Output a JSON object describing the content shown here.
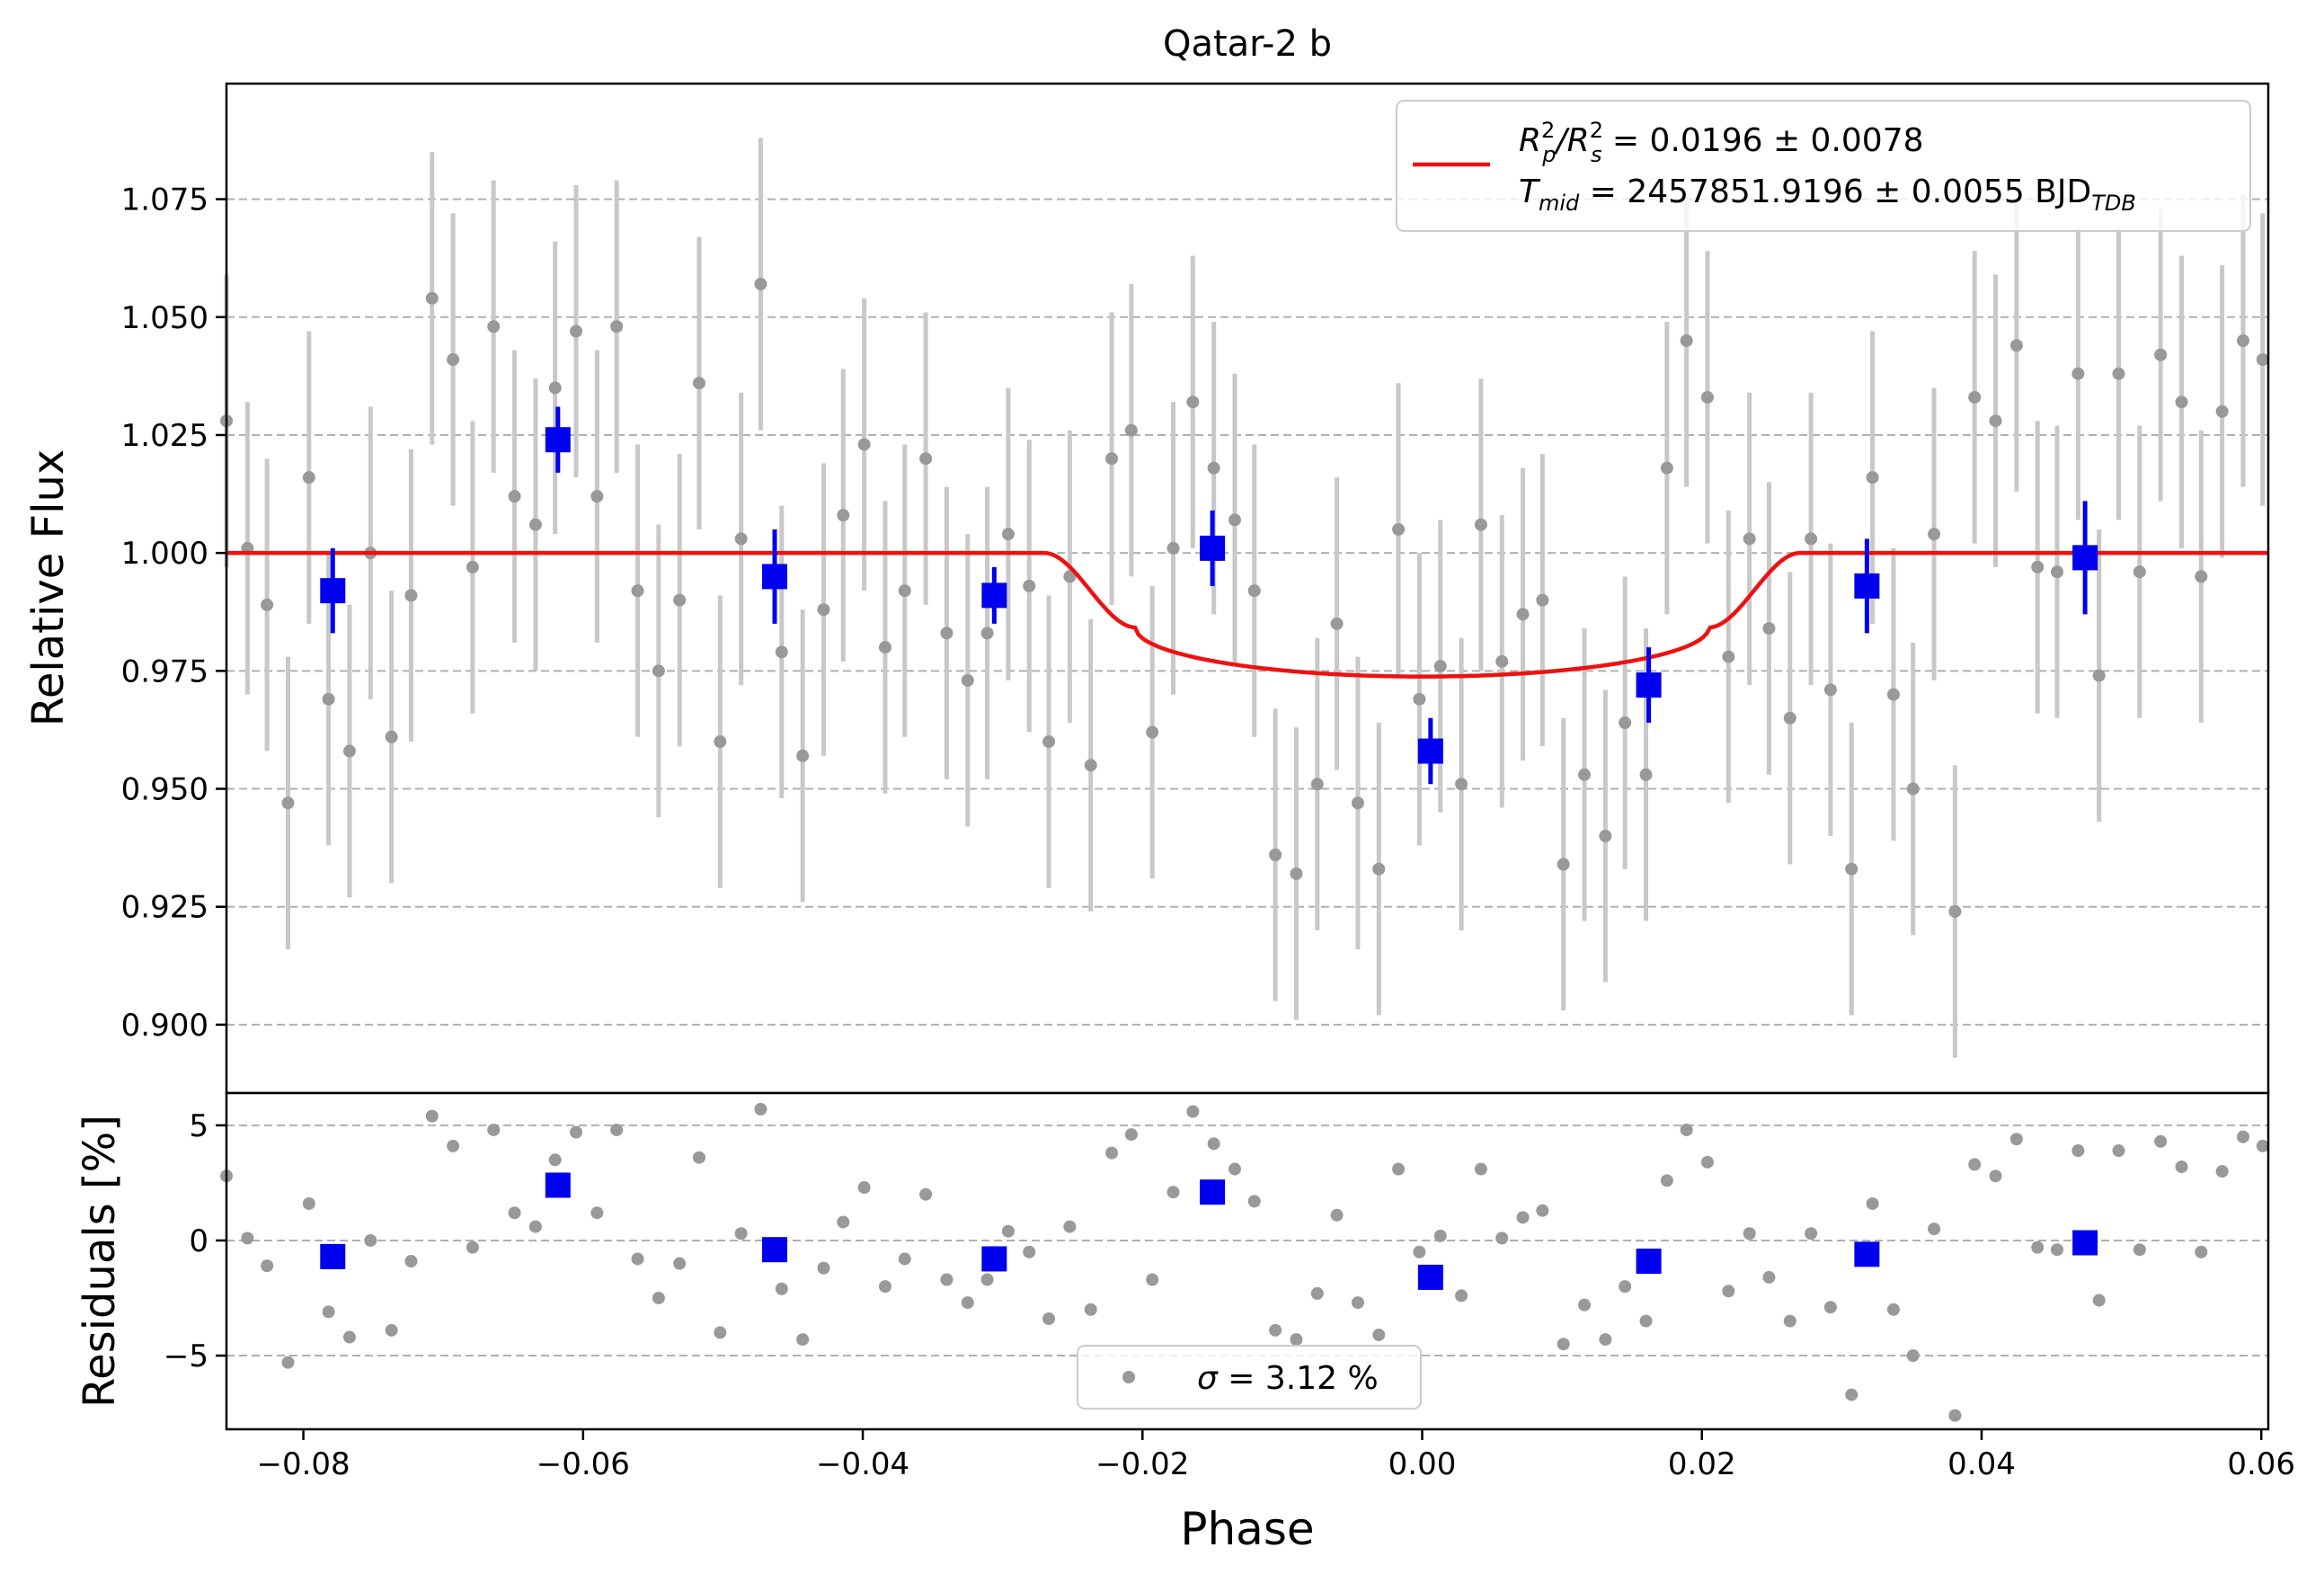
{
  "chart_data": [
    {
      "type": "scatter",
      "panel": "light-curve",
      "title": "Qatar-2 b",
      "ylabel": "Relative Flux",
      "xlim": [
        -0.0855,
        0.0605
      ],
      "ylim": [
        0.8855,
        1.0995
      ],
      "yticks": [
        0.9,
        0.925,
        0.95,
        0.975,
        1.0,
        1.025,
        1.05,
        1.075
      ],
      "ytick_labels": [
        "0.900",
        "0.925",
        "0.950",
        "0.975",
        "1.000",
        "1.025",
        "1.050",
        "1.075"
      ],
      "grid": "horizontal dashed",
      "legend": {
        "placement": "top-right",
        "line1_main": "R",
        "line1_sup1": "2",
        "line1_sub1": "p",
        "line1_slash": "/R",
        "line1_sup2": "2",
        "line1_sub2": "s",
        "line1_value": " = 0.0196 ± 0.0078",
        "line2_main": "T",
        "line2_sub": "mid",
        "line2_value": " = 2457851.9196 ± 0.0055 BJD",
        "line2_value_sub": "TDB"
      },
      "model": {
        "color": "#ee1111",
        "baseline": 1.0,
        "t1": -0.027,
        "t2": -0.0205,
        "t3": 0.0205,
        "t4": 0.027,
        "depth_edge": 0.0158,
        "depth_center": 0.0262
      },
      "raw_points": {
        "color": "#999999",
        "errorbar_color": "#c8c8c8",
        "x": [
          -0.0855,
          -0.084,
          -0.0826,
          -0.0811,
          -0.0796,
          -0.0782,
          -0.0767,
          -0.0752,
          -0.0737,
          -0.0723,
          -0.0708,
          -0.0693,
          -0.0679,
          -0.0664,
          -0.0649,
          -0.0634,
          -0.062,
          -0.0605,
          -0.059,
          -0.0576,
          -0.0561,
          -0.0546,
          -0.0531,
          -0.0517,
          -0.0502,
          -0.0487,
          -0.0473,
          -0.0458,
          -0.0443,
          -0.0428,
          -0.0414,
          -0.0399,
          -0.0384,
          -0.037,
          -0.0355,
          -0.034,
          -0.0325,
          -0.0311,
          -0.0296,
          -0.0281,
          -0.0267,
          -0.0252,
          -0.0237,
          -0.0222,
          -0.0208,
          -0.0193,
          -0.0178,
          -0.0164,
          -0.0149,
          -0.0134,
          -0.012,
          -0.0105,
          -0.009,
          -0.0075,
          -0.0061,
          -0.0046,
          -0.0031,
          -0.0017,
          -0.0002,
          0.0013,
          0.0028,
          0.0042,
          0.0057,
          0.0072,
          0.0086,
          0.0101,
          0.0116,
          0.0131,
          0.0145,
          0.016,
          0.0175,
          0.0189,
          0.0204,
          0.0219,
          0.0234,
          0.0248,
          0.0263,
          0.0278,
          0.0292,
          0.0307,
          0.0322,
          0.0337,
          0.0351,
          0.0366,
          0.0381,
          0.0395,
          0.041,
          0.0425,
          0.044,
          0.0454,
          0.0469,
          0.0484,
          0.0498,
          0.0513,
          0.0528,
          0.0543,
          0.0557,
          0.0572,
          0.0587,
          0.0601
        ],
        "y": [
          1.028,
          1.001,
          0.989,
          0.947,
          1.016,
          0.969,
          0.958,
          1.0,
          0.961,
          0.991,
          1.054,
          1.041,
          0.997,
          1.048,
          1.012,
          1.006,
          1.035,
          1.047,
          1.012,
          1.048,
          0.992,
          0.975,
          0.99,
          1.036,
          0.96,
          1.003,
          1.057,
          0.979,
          0.957,
          0.988,
          1.008,
          1.023,
          0.98,
          0.992,
          1.02,
          0.983,
          0.973,
          0.983,
          1.004,
          0.993,
          0.96,
          0.995,
          0.955,
          1.02,
          1.026,
          0.962,
          1.001,
          1.032,
          1.018,
          1.007,
          0.992,
          0.936,
          0.932,
          0.951,
          0.985,
          0.947,
          0.933,
          1.005,
          0.969,
          0.976,
          0.951,
          1.006,
          0.977,
          0.987,
          0.99,
          0.934,
          0.953,
          0.94,
          0.964,
          0.953,
          1.018,
          1.045,
          1.033,
          0.978,
          1.003,
          0.984,
          0.965,
          1.003,
          0.971,
          0.933,
          1.016,
          0.97,
          0.95,
          1.004,
          0.924,
          1.033,
          1.028,
          1.044,
          0.997,
          0.996,
          1.038,
          0.974,
          1.038,
          0.996,
          1.042,
          1.032,
          0.995,
          1.03,
          1.045,
          1.041
        ],
        "yerr": 0.031
      },
      "binned_points": {
        "color": "#0000ee",
        "x": [
          -0.0779,
          -0.0618,
          -0.0463,
          -0.0306,
          -0.015,
          0.0006,
          0.0162,
          0.0318,
          0.0474
        ],
        "y": [
          0.992,
          1.024,
          0.995,
          0.991,
          1.001,
          0.958,
          0.972,
          0.993,
          0.999
        ],
        "yerr": [
          0.009,
          0.007,
          0.01,
          0.006,
          0.008,
          0.007,
          0.008,
          0.01,
          0.012
        ]
      }
    },
    {
      "type": "scatter",
      "panel": "residuals",
      "xlabel": "Phase",
      "ylabel": "Residuals [%]",
      "xlim": [
        -0.0855,
        0.0605
      ],
      "ylim": [
        -8.2,
        6.4
      ],
      "xticks": [
        -0.08,
        -0.06,
        -0.04,
        -0.02,
        0.0,
        0.02,
        0.04,
        0.06
      ],
      "xtick_labels": [
        "−0.08",
        "−0.06",
        "−0.04",
        "−0.02",
        "0.00",
        "0.02",
        "0.04",
        "0.06"
      ],
      "yticks": [
        -5,
        0,
        5
      ],
      "ytick_labels": [
        "−5",
        "0",
        "5"
      ],
      "grid": "horizontal dashed",
      "legend": {
        "placement": "bottom-center",
        "symbol": "σ",
        "text": " = 3.12 %"
      },
      "raw_points": {
        "color": "#999999",
        "y": [
          2.8,
          0.1,
          -1.1,
          -5.3,
          1.6,
          -3.1,
          -4.2,
          0.0,
          -3.9,
          -0.9,
          5.4,
          4.1,
          -0.3,
          4.8,
          1.2,
          0.6,
          3.5,
          4.7,
          1.2,
          4.8,
          -0.8,
          -2.5,
          -1.0,
          3.6,
          -4.0,
          0.3,
          5.7,
          -2.1,
          -4.3,
          -1.2,
          0.8,
          2.3,
          -2.0,
          -0.8,
          2.0,
          -1.7,
          -2.7,
          -1.7,
          0.4,
          -0.5,
          -3.4,
          0.6,
          -3.0,
          3.8,
          4.6,
          -1.7,
          2.1,
          5.6,
          4.2,
          3.1,
          1.7,
          -3.9,
          -4.3,
          -2.3,
          1.1,
          -2.7,
          -4.1,
          3.1,
          -0.5,
          0.2,
          -2.4,
          3.1,
          0.1,
          1.0,
          1.3,
          -4.5,
          -2.8,
          -4.3,
          -2.0,
          -3.5,
          2.6,
          4.8,
          3.4,
          -2.2,
          0.3,
          -1.6,
          -3.5,
          0.3,
          -2.9,
          -6.7,
          1.6,
          -3.0,
          -5.0,
          0.5,
          -7.6,
          3.3,
          2.8,
          4.4,
          -0.3,
          -0.4,
          3.9,
          -2.6,
          3.9,
          -0.4,
          4.3,
          3.2,
          -0.5,
          3.0,
          4.5,
          4.1
        ]
      },
      "binned_points": {
        "color": "#0000ee",
        "y": [
          -0.7,
          2.4,
          -0.4,
          -0.8,
          2.1,
          -1.6,
          -0.9,
          -0.6,
          -0.1
        ]
      }
    }
  ]
}
